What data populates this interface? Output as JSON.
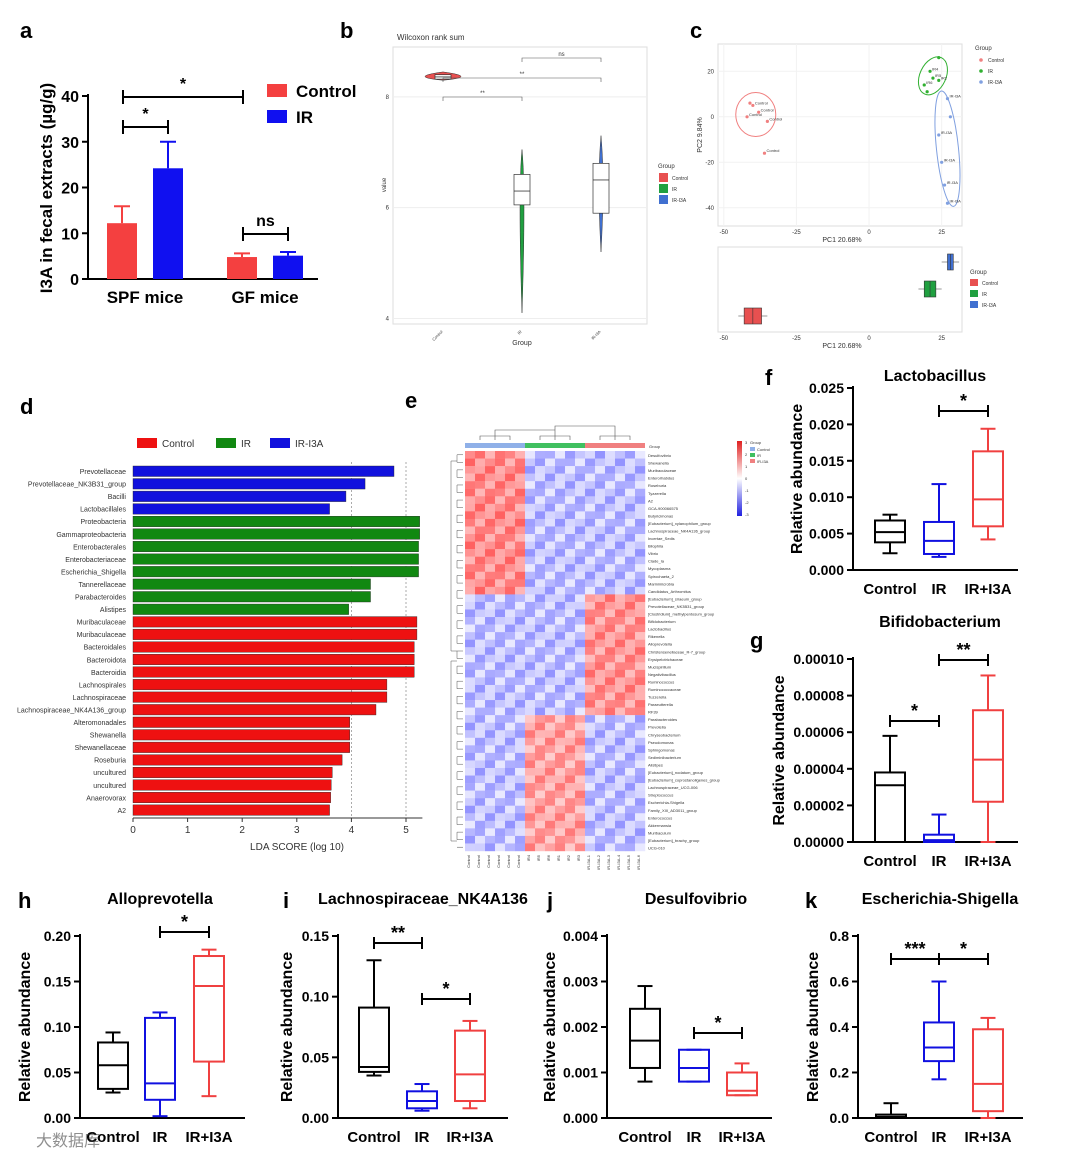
{
  "panel_labels": [
    "a",
    "b",
    "c",
    "d",
    "e",
    "f",
    "g",
    "h",
    "i",
    "j",
    "k"
  ],
  "watermark": "大数据库",
  "chart_data": [
    {
      "id": "a",
      "type": "bar",
      "ylabel": "I3A in fecal extracts (µg/g)",
      "categories": [
        "SPF mice",
        "GF mice"
      ],
      "ylim": [
        0,
        40
      ],
      "yticks": [
        0,
        10,
        20,
        30,
        40
      ],
      "series": [
        {
          "name": "Control",
          "color": "#f44040",
          "values": [
            12.2,
            4.8
          ],
          "errors": [
            3.7,
            0.8
          ]
        },
        {
          "name": "IR",
          "color": "#1010f0",
          "values": [
            24.2,
            5.1
          ],
          "errors": [
            5.8,
            0.8
          ]
        }
      ],
      "annotations": [
        "*",
        "*",
        "ns"
      ]
    },
    {
      "id": "b",
      "type": "box",
      "title": "Wilcoxon rank sum",
      "xlabel": "Group",
      "ylabel": "value",
      "categories": [
        "Control",
        "IR",
        "IR-I3A"
      ],
      "yticks": [
        4,
        6,
        8
      ],
      "ylim": [
        3.9,
        8.9
      ],
      "boxes": [
        {
          "min": 8.3,
          "q1": 8.32,
          "median": 8.36,
          "q3": 8.4,
          "max": 8.45
        },
        {
          "min": 4.1,
          "q1": 6.05,
          "median": 6.3,
          "q3": 6.6,
          "max": 7.05
        },
        {
          "min": 5.2,
          "q1": 5.9,
          "median": 6.5,
          "q3": 6.8,
          "max": 7.3
        }
      ],
      "annotations": [
        "**",
        "**",
        "ns"
      ],
      "legend": {
        "title": "Group",
        "entries": [
          "Control",
          "IR",
          "IR-I3A"
        ]
      }
    },
    {
      "id": "c",
      "type": "scatter",
      "xlabel": "PC1 20.68%",
      "ylabel": "PC2 9.84%",
      "xticks": [
        -50,
        -25,
        0,
        25
      ],
      "yticks": [
        -40,
        -20,
        0,
        20
      ],
      "xlim": [
        -52,
        32
      ],
      "ylim": [
        -48,
        32
      ],
      "groups": [
        {
          "name": "Control",
          "color": "#f08080",
          "points": [
            [
              -40,
              5
            ],
            [
              -42,
              0
            ],
            [
              -38,
              2
            ],
            [
              -35,
              -2
            ],
            [
              -36,
              -16
            ],
            [
              -41,
              6
            ]
          ],
          "labels": [
            "Control",
            "Control",
            "Control",
            "Control",
            "Control"
          ]
        },
        {
          "name": "IR",
          "color": "#30b030",
          "points": [
            [
              21,
              20
            ],
            [
              22,
              17
            ],
            [
              19,
              14
            ],
            [
              24,
              16
            ],
            [
              20,
              11
            ],
            [
              24,
              26
            ]
          ],
          "labels": [
            "IR4",
            "IR5",
            "IR6",
            "IR2"
          ]
        },
        {
          "name": "IR-I3A",
          "color": "#80a0e0",
          "points": [
            [
              27,
              8
            ],
            [
              24,
              -8
            ],
            [
              25,
              -20
            ],
            [
              26,
              -30
            ],
            [
              27,
              -38
            ],
            [
              28,
              0
            ]
          ],
          "labels": [
            "IR-I3A",
            "IR-I3A",
            "IR-I3A",
            "IR-I3A",
            "IR-I3A"
          ]
        }
      ],
      "bottom_box": {
        "xlabel": "PC1 20.68%",
        "xticks": [
          -50,
          -25,
          0,
          25
        ]
      }
    },
    {
      "id": "d",
      "type": "bar",
      "orientation": "horizontal",
      "xlabel": "LDA SCORE (log 10)",
      "xticks": [
        0,
        1,
        2,
        3,
        4,
        5
      ],
      "xlim": [
        0,
        5.3
      ],
      "legend": [
        "Control",
        "IR",
        "IR-I3A"
      ],
      "colors": {
        "Control": "#ee1111",
        "IR": "#118811",
        "IR-I3A": "#1111dd"
      },
      "items": [
        {
          "label": "Prevotellaceae",
          "value": 4.78,
          "group": "IR-I3A"
        },
        {
          "label": "Prevotellaceae_NK3B31_group",
          "value": 4.25,
          "group": "IR-I3A"
        },
        {
          "label": "Bacilli",
          "value": 3.9,
          "group": "IR-I3A"
        },
        {
          "label": "Lactobacillales",
          "value": 3.6,
          "group": "IR-I3A"
        },
        {
          "label": "Proteobacteria",
          "value": 5.25,
          "group": "IR"
        },
        {
          "label": "Gammaproteobacteria",
          "value": 5.25,
          "group": "IR"
        },
        {
          "label": "Enterobacterales",
          "value": 5.23,
          "group": "IR"
        },
        {
          "label": "Enterobacteriaceae",
          "value": 5.23,
          "group": "IR"
        },
        {
          "label": "Escherichia_Shigella",
          "value": 5.23,
          "group": "IR"
        },
        {
          "label": "Tannerellaceae",
          "value": 4.35,
          "group": "IR"
        },
        {
          "label": "Parabacteroides",
          "value": 4.35,
          "group": "IR"
        },
        {
          "label": "Alistipes",
          "value": 3.95,
          "group": "IR"
        },
        {
          "label": "Muribaculaceae",
          "value": 5.2,
          "group": "Control"
        },
        {
          "label": "Muribaculaceae",
          "value": 5.2,
          "group": "Control"
        },
        {
          "label": "Bacteroidales",
          "value": 5.15,
          "group": "Control"
        },
        {
          "label": "Bacteroidota",
          "value": 5.15,
          "group": "Control"
        },
        {
          "label": "Bacteroidia",
          "value": 5.15,
          "group": "Control"
        },
        {
          "label": "Lachnospirales",
          "value": 4.65,
          "group": "Control"
        },
        {
          "label": "Lachnospiraceae",
          "value": 4.65,
          "group": "Control"
        },
        {
          "label": "Lachnospiraceae_NK4A136_group",
          "value": 4.45,
          "group": "Control"
        },
        {
          "label": "Alteromonadales",
          "value": 3.97,
          "group": "Control"
        },
        {
          "label": "Shewanella",
          "value": 3.97,
          "group": "Control"
        },
        {
          "label": "Shewanellaceae",
          "value": 3.97,
          "group": "Control"
        },
        {
          "label": "Roseburia",
          "value": 3.83,
          "group": "Control"
        },
        {
          "label": "uncultured",
          "value": 3.65,
          "group": "Control"
        },
        {
          "label": "uncultured",
          "value": 3.63,
          "group": "Control"
        },
        {
          "label": "Anaerovorax",
          "value": 3.62,
          "group": "Control"
        },
        {
          "label": "A2",
          "value": 3.6,
          "group": "Control"
        }
      ]
    },
    {
      "id": "e",
      "type": "heatmap",
      "row_labels": [
        "Desulfovibrio",
        "Shewanella",
        "Muribaculaceae",
        "Enterorhabdus",
        "Roseburia",
        "Tyzzerella",
        "A2",
        "GCA-900066575",
        "Butyricimonas",
        "[Eubacterium]_xylanophilum_group",
        "Lachnospiraceae_NK4A136_group",
        "Incertae_Sedis",
        "Bilophila",
        "Vibrio",
        "Clade_Ia",
        "Mycoplasma",
        "Spirochaeta_2",
        "Marinimicrobia",
        "Candidatus_Arthromitus",
        "[Eubacterium]_siraeum_group",
        "Prevotellaceae_NK3B31_group",
        "[Clostridium]_methylpentosum_group",
        "Bifidobacterium",
        "Lactobacillus",
        "Rikenella",
        "Alloprevotella",
        "Christensenellaceae_R-7_group",
        "Erysipelotrichaceae",
        "Mucispirillum",
        "Negativibacillus",
        "Ruminococcus",
        "Ruminococcaceae",
        "Tuzzerella",
        "Paraeutterella",
        "RF39",
        "Parabacteroides",
        "Prevotella",
        "Chryseobacterium",
        "Pseudomonas",
        "Sphingomonas",
        "Sediminibacterium",
        "Alistipes",
        "[Eubacterium]_nodatum_group",
        "[Eubacterium]_coprostanoligenes_group",
        "Lachnospiraceae_UCG-006",
        "Streptococcus",
        "Escherichia-Shigella",
        "Family_XIII_AD3011_group",
        "Enterococcus",
        "Akkermansia",
        "Muribaculum",
        "[Eubacterium]_brachy_group",
        "UCG-010"
      ],
      "col_labels": [
        "Control",
        "Control",
        "Control",
        "Control",
        "Control",
        "Control",
        "IR4",
        "IR5",
        "IR6",
        "IR1",
        "IR2",
        "IR3",
        "IR-I3A-1",
        "IR-I3A-2",
        "IR-I3A-3",
        "IR-I3A-4",
        "IR-I3A-5",
        "IR-I3A-6"
      ],
      "group_row_label": "Group",
      "scale_values": [
        "3",
        "2",
        "1",
        "0",
        "-1",
        "-2",
        "-3"
      ],
      "legend": {
        "title": "Group",
        "entries": [
          "Control",
          "IR",
          "IR-I3A"
        ]
      }
    },
    {
      "id": "f",
      "type": "box",
      "title": "Lactobacillus",
      "ylabel": "Relative abundance",
      "categories": [
        "Control",
        "IR",
        "IR+I3A"
      ],
      "ylim": [
        0,
        0.025
      ],
      "yticks": [
        "0.000",
        "0.005",
        "0.010",
        "0.015",
        "0.020",
        "0.025"
      ],
      "boxes": [
        {
          "min": 0.0023,
          "q1": 0.0038,
          "median": 0.0052,
          "q3": 0.0068,
          "max": 0.0076
        },
        {
          "min": 0.0018,
          "q1": 0.0022,
          "median": 0.004,
          "q3": 0.0066,
          "max": 0.0118
        },
        {
          "min": 0.0042,
          "q1": 0.006,
          "median": 0.0097,
          "q3": 0.0163,
          "max": 0.0194
        }
      ],
      "brackets": [
        {
          "from": 1,
          "to": 2,
          "label": "*"
        }
      ]
    },
    {
      "id": "g",
      "type": "box",
      "title": "Bifidobacterium",
      "ylabel": "Relative abundance",
      "categories": [
        "Control",
        "IR",
        "IR+I3A"
      ],
      "ylim": [
        0,
        0.0001
      ],
      "yticks": [
        "0.00000",
        "0.00002",
        "0.00004",
        "0.00006",
        "0.00008",
        "0.00010"
      ],
      "boxes": [
        {
          "min": 0,
          "q1": 0,
          "median": 3.1e-05,
          "q3": 3.8e-05,
          "max": 5.8e-05
        },
        {
          "min": 0,
          "q1": 0,
          "median": 1e-06,
          "q3": 4e-06,
          "max": 1.5e-05
        },
        {
          "min": 0,
          "q1": 2.2e-05,
          "median": 4.5e-05,
          "q3": 7.2e-05,
          "max": 9.1e-05
        }
      ],
      "brackets": [
        {
          "from": 0,
          "to": 1,
          "label": "*"
        },
        {
          "from": 1,
          "to": 2,
          "label": "**"
        }
      ]
    },
    {
      "id": "h",
      "type": "box",
      "title": "Alloprevotella",
      "ylabel": "Relative abundance",
      "categories": [
        "Control",
        "IR",
        "IR+I3A"
      ],
      "ylim": [
        0,
        0.2
      ],
      "yticks": [
        "0.00",
        "0.05",
        "0.10",
        "0.15",
        "0.20"
      ],
      "boxes": [
        {
          "min": 0.028,
          "q1": 0.032,
          "median": 0.058,
          "q3": 0.083,
          "max": 0.094
        },
        {
          "min": 0.002,
          "q1": 0.02,
          "median": 0.038,
          "q3": 0.11,
          "max": 0.116
        },
        {
          "min": 0.024,
          "q1": 0.062,
          "median": 0.145,
          "q3": 0.178,
          "max": 0.185
        }
      ],
      "brackets": [
        {
          "from": 1,
          "to": 2,
          "label": "*"
        }
      ]
    },
    {
      "id": "i",
      "type": "box",
      "title": "Lachnospiraceae_NK4A136",
      "ylabel": "Relative abundance",
      "categories": [
        "Control",
        "IR",
        "IR+I3A"
      ],
      "ylim": [
        0,
        0.15
      ],
      "yticks": [
        "0.00",
        "0.05",
        "0.10",
        "0.15"
      ],
      "boxes": [
        {
          "min": 0.035,
          "q1": 0.038,
          "median": 0.042,
          "q3": 0.091,
          "max": 0.13
        },
        {
          "min": 0.006,
          "q1": 0.008,
          "median": 0.014,
          "q3": 0.022,
          "max": 0.028
        },
        {
          "min": 0.008,
          "q1": 0.014,
          "median": 0.036,
          "q3": 0.072,
          "max": 0.08
        }
      ],
      "brackets": [
        {
          "from": 0,
          "to": 1,
          "label": "**"
        },
        {
          "from": 1,
          "to": 2,
          "label": "*"
        }
      ]
    },
    {
      "id": "j",
      "type": "box",
      "title": "Desulfovibrio",
      "ylabel": "Relative abundance",
      "categories": [
        "Control",
        "IR",
        "IR+I3A"
      ],
      "ylim": [
        0,
        0.004
      ],
      "yticks": [
        "0.000",
        "0.001",
        "0.002",
        "0.003",
        "0.004"
      ],
      "boxes": [
        {
          "min": 0.0008,
          "q1": 0.0011,
          "median": 0.0017,
          "q3": 0.0024,
          "max": 0.0029
        },
        {
          "min": 0.0008,
          "q1": 0.0008,
          "median": 0.0011,
          "q3": 0.0015,
          "max": 0.0015
        },
        {
          "min": 0.0005,
          "q1": 0.0005,
          "median": 0.0006,
          "q3": 0.001,
          "max": 0.0012
        }
      ],
      "brackets": [
        {
          "from": 1,
          "to": 2,
          "label": "*"
        }
      ]
    },
    {
      "id": "k",
      "type": "box",
      "title": "Escherichia-Shigella",
      "ylabel": "Relative abundance",
      "categories": [
        "Control",
        "IR",
        "IR+I3A"
      ],
      "ylim": [
        0,
        0.8
      ],
      "yticks": [
        "0.0",
        "0.2",
        "0.4",
        "0.6",
        "0.8"
      ],
      "boxes": [
        {
          "min": 0,
          "q1": 0,
          "median": 0.005,
          "q3": 0.015,
          "max": 0.065
        },
        {
          "min": 0.17,
          "q1": 0.25,
          "median": 0.31,
          "q3": 0.42,
          "max": 0.6
        },
        {
          "min": 0,
          "q1": 0.03,
          "median": 0.15,
          "q3": 0.39,
          "max": 0.44
        }
      ],
      "brackets": [
        {
          "from": 0,
          "to": 1,
          "label": "***"
        },
        {
          "from": 1,
          "to": 2,
          "label": "*"
        }
      ]
    }
  ]
}
